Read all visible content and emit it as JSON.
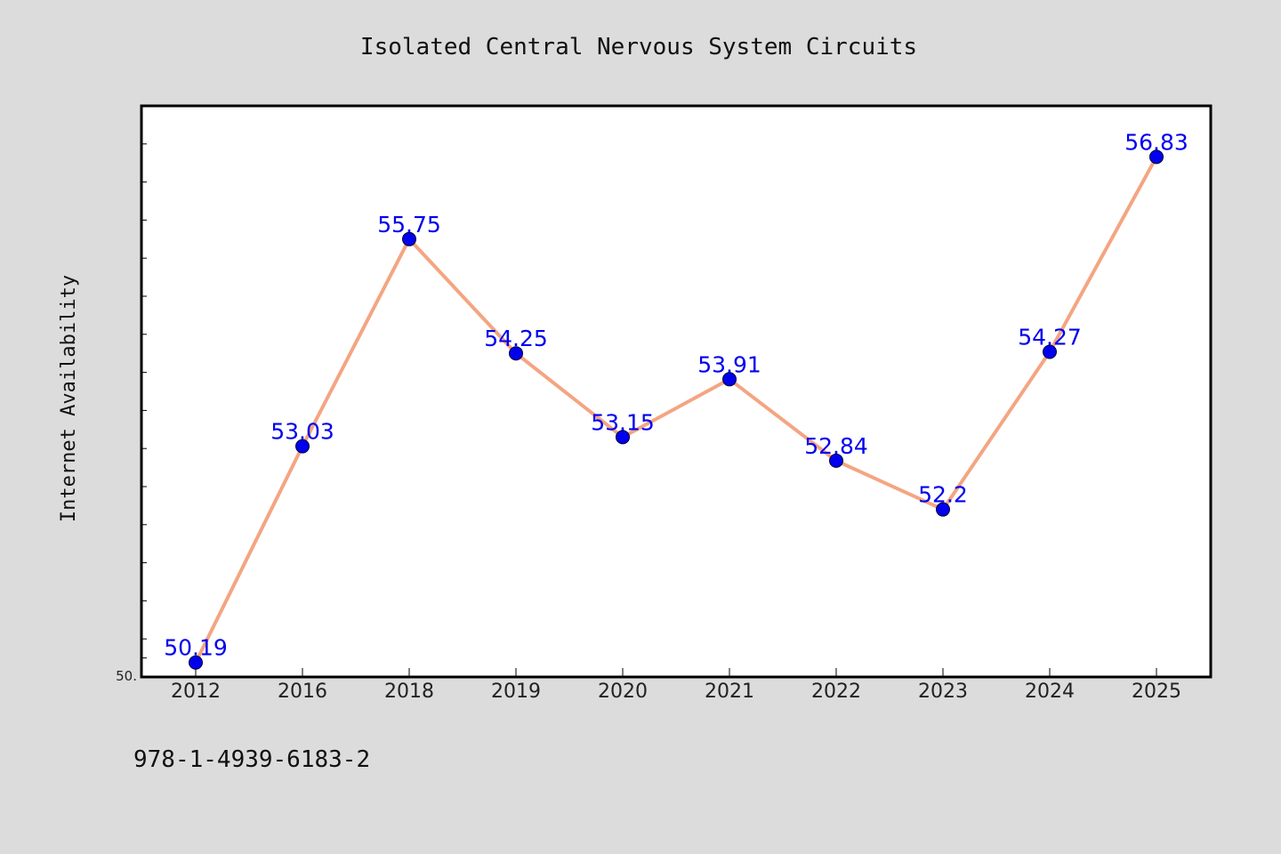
{
  "chart_data": {
    "type": "line",
    "title": "Isolated Central Nervous System Circuits",
    "xlabel": "",
    "ylabel": "Internet Availability",
    "categories": [
      "2012",
      "2016",
      "2018",
      "2019",
      "2020",
      "2021",
      "2022",
      "2023",
      "2024",
      "2025"
    ],
    "series": [
      {
        "values": [
          50.19,
          53.03,
          55.75,
          54.25,
          53.15,
          53.91,
          52.84,
          52.2,
          54.27,
          56.83
        ],
        "data_labels": [
          "50.19",
          "53.03",
          "55.75",
          "54.25",
          "53.15",
          "53.91",
          "52.84",
          "52.2",
          "54.27",
          "56.83"
        ],
        "line_color": "#f4a582",
        "marker_color": "#0000ee"
      }
    ],
    "ylim": [
      50.0,
      57.5
    ],
    "y_tick_labels": [
      "50."
    ],
    "grid": false,
    "legend": "none",
    "plot_background": "#ffffff",
    "figure_background": "#dcdcdc"
  },
  "footer": {
    "isbn": "978-1-4939-6183-2"
  }
}
